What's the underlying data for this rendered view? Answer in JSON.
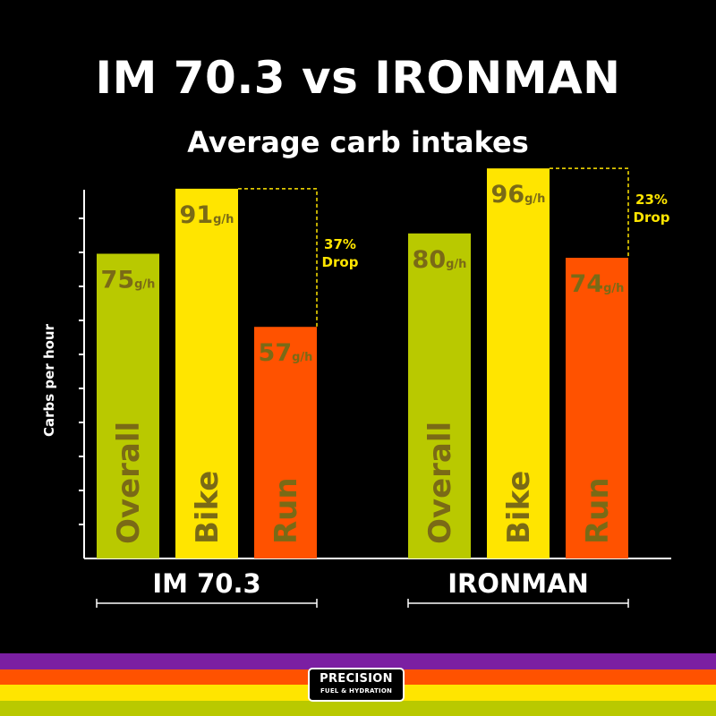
{
  "chart_data": {
    "type": "bar",
    "title": "IM 70.3 vs IRONMAN",
    "subtitle": "Average carb intakes",
    "ylabel": "Carbs per hour",
    "ylim": [
      0,
      100
    ],
    "unit": "g/h",
    "groups": [
      {
        "name": "IM 70.3",
        "bars": [
          {
            "label": "Overall",
            "value": 75
          },
          {
            "label": "Bike",
            "value": 91
          },
          {
            "label": "Run",
            "value": 57
          }
        ],
        "drop": {
          "pct": "37%",
          "text": "Drop"
        }
      },
      {
        "name": "IRONMAN",
        "bars": [
          {
            "label": "Overall",
            "value": 80
          },
          {
            "label": "Bike",
            "value": 96
          },
          {
            "label": "Run",
            "value": 74
          }
        ],
        "drop": {
          "pct": "23%",
          "text": "Drop"
        }
      }
    ],
    "colors": {
      "Overall": "#b9c900",
      "Bike": "#ffe500",
      "Run": "#ff5200",
      "labelText": "#7a6a16",
      "dropText": "#ffe500",
      "axis": "#ffffff"
    }
  },
  "brand": {
    "line1": "PRECISION",
    "line2": "FUEL & HYDRATION",
    "stripes": [
      "#7b1fa2",
      "#ff5200",
      "#ffe500",
      "#b9c900"
    ]
  }
}
